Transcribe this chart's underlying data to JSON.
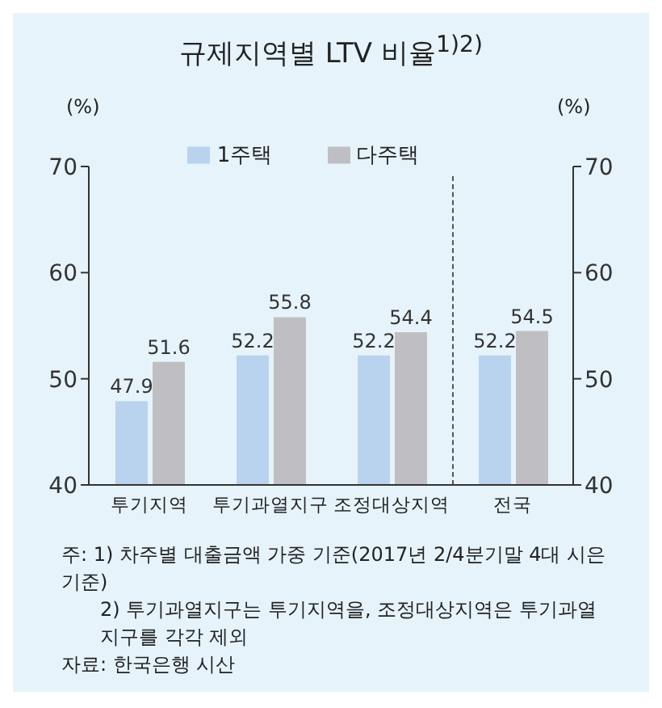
{
  "chart_data": {
    "type": "bar",
    "title": "규제지역별 LTV 비율$^{1)2)}$",
    "ylabel": "(%)",
    "y2label": "(%)",
    "categories": [
      "투기지역",
      "투기과열지구",
      "조정대상지역",
      "전국"
    ],
    "series": [
      {
        "name": "1주택",
        "color": "#b9d3ee",
        "values": [
          47.9,
          52.2,
          52.2,
          52.2
        ]
      },
      {
        "name": "다주택",
        "color": "#bfbfc3",
        "values": [
          51.6,
          55.8,
          54.4,
          54.5
        ]
      }
    ],
    "ylim": [
      40,
      70
    ],
    "yticks": [
      40,
      50,
      60,
      70
    ],
    "y2lim": [
      40,
      70
    ],
    "y2ticks": [
      40,
      50,
      60,
      70
    ],
    "data_labels": true,
    "legend": "top",
    "grid": false,
    "annotations": [
      "주: 1) 차주별 대출금액 가중 기준(2017년 2/4분기말 4대 시은 기준)",
      "2) 투기과열지구는 투기지역을, 조정대상지역은 투기과열지구를 각각 제외",
      "자료: 한국은행 시산"
    ]
  }
}
